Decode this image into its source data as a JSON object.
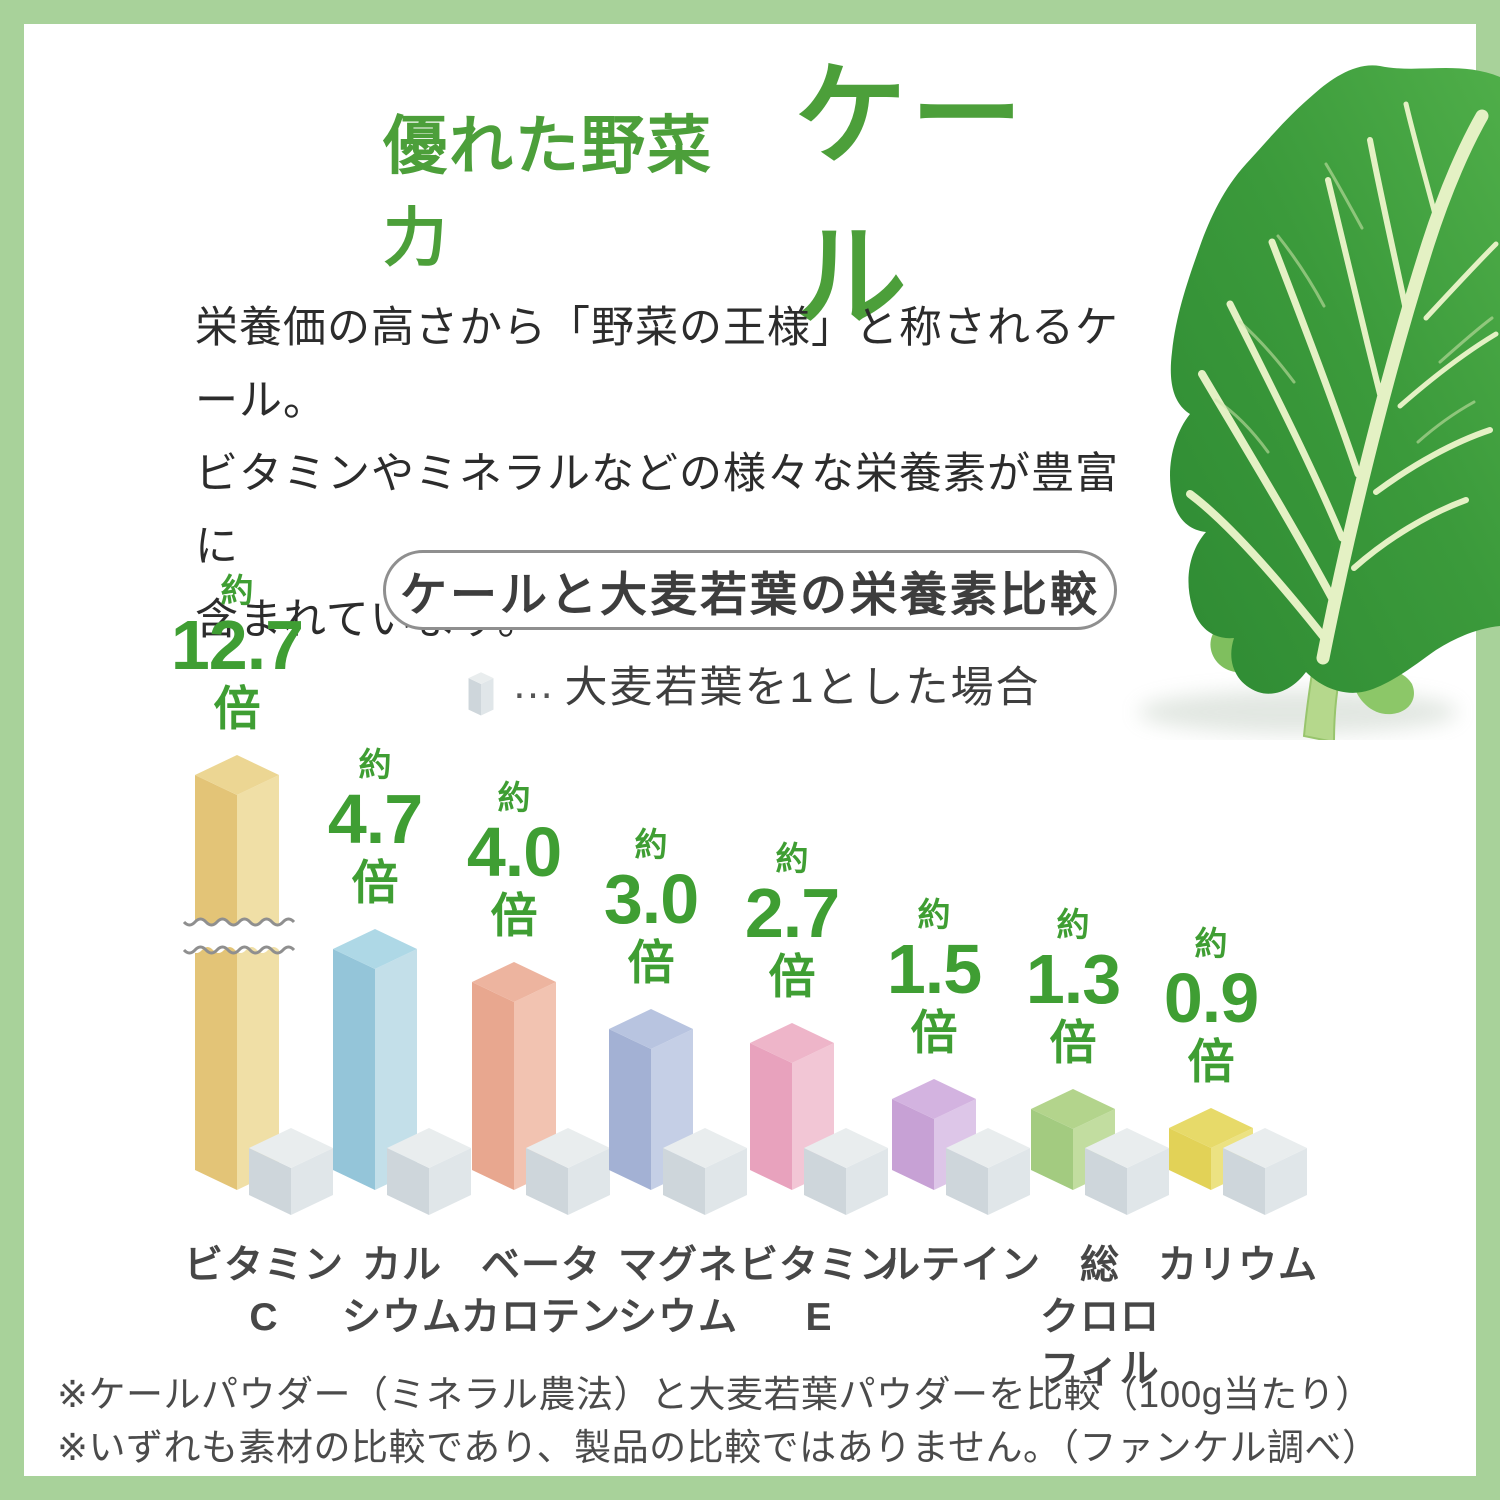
{
  "frame": {
    "border_color": "#a8d29a"
  },
  "header": {
    "title_prefix": "優れた野菜力",
    "title_main": "ケール",
    "color": "#4c9f3a"
  },
  "intro": {
    "lines": [
      "栄養価の高さから「野菜の王様」と称されるケール。",
      "ビタミンやミネラルなどの様々な栄養素が豊富に",
      "含まれています。"
    ]
  },
  "chart_data": {
    "type": "bar",
    "title": "ケールと大麦若葉の栄養素比較",
    "legend": {
      "prefix": "…",
      "label": "大麦若葉を1とした場合"
    },
    "categories": [
      "ビタミンC",
      "カルシウム",
      "ベータカロテン",
      "マグネシウム",
      "ビタミンE",
      "ルテイン",
      "総クロロフィル",
      "カリウム"
    ],
    "series": [
      {
        "name": "ケール",
        "values": [
          12.7,
          4.7,
          4.0,
          3.0,
          2.7,
          1.5,
          1.3,
          0.9
        ]
      },
      {
        "name": "大麦若葉",
        "values": [
          1,
          1,
          1,
          1,
          1,
          1,
          1,
          1
        ]
      }
    ],
    "value_labels": [
      "12.7",
      "4.7",
      "4.0",
      "3.0",
      "2.7",
      "1.5",
      "1.3",
      "0.9"
    ],
    "value_prefix": "約",
    "value_suffix": "倍",
    "value_color": "#3f9e33",
    "broken_bar_index": 0,
    "baseline_note": "大麦若葉を1とした場合",
    "category_label_lines": [
      [
        "ビタミン",
        "C"
      ],
      [
        "カル",
        "シウム"
      ],
      [
        "ベータ",
        "カロテン"
      ],
      [
        "マグネ",
        "シウム"
      ],
      [
        "ビタミン",
        "E"
      ],
      [
        "ルテイン"
      ],
      [
        "総",
        "クロロ",
        "フィル"
      ],
      [
        "カリウム"
      ]
    ],
    "bar_colors": [
      {
        "dark": "#e3c477",
        "light": "#f0dfa6",
        "top": "#ecd693"
      },
      {
        "dark": "#94c5d9",
        "light": "#c3dfe9",
        "top": "#aed8e6"
      },
      {
        "dark": "#e8a78f",
        "light": "#f2c3b1",
        "top": "#edb49f"
      },
      {
        "dark": "#a3b1d4",
        "light": "#c5cfe6",
        "top": "#b8c4e0"
      },
      {
        "dark": "#e8a2bd",
        "light": "#f2c6d5",
        "top": "#eeb5c9"
      },
      {
        "dark": "#c7a1d5",
        "light": "#ddc6e8",
        "top": "#d3b3e0"
      },
      {
        "dark": "#a3cb80",
        "light": "#c2dda0",
        "top": "#b3d48c"
      },
      {
        "dark": "#e2d257",
        "light": "#ece282",
        "top": "#e7da69"
      }
    ],
    "reference_color": {
      "dark": "#ced6db",
      "light": "#e0e6e9",
      "top": "#e9edee"
    }
  },
  "footnotes": {
    "lines": [
      "※ケールパウダー（ミネラル農法）と大麦若葉パウダーを比較（100g当たり）",
      "※いずれも素材の比較であり、製品の比較ではありません。（ファンケル調べ）"
    ]
  }
}
